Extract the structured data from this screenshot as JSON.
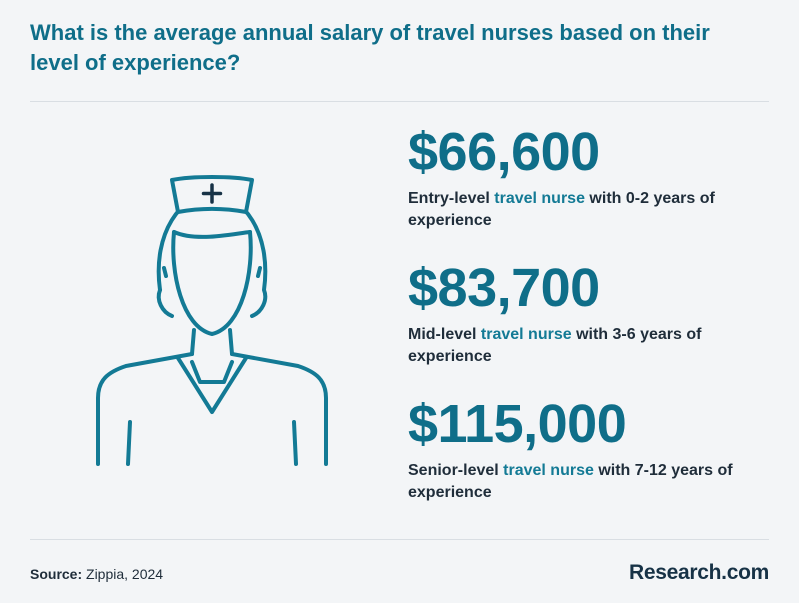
{
  "title": "What is the average annual salary of travel nurses based on their level of  experience?",
  "stats": [
    {
      "amount": "$66,600",
      "prefix": "Entry-level ",
      "highlight": "travel nurse",
      "suffix": " with 0-2 years of experience"
    },
    {
      "amount": "$83,700",
      "prefix": "Mid-level ",
      "highlight": "travel nurse",
      "suffix": " with 3-6 years of experience"
    },
    {
      "amount": "$115,000",
      "prefix": "Senior-level ",
      "highlight": "travel nurse",
      "suffix": " with 7-12 years of experience"
    }
  ],
  "footer": {
    "source_label": "Source:",
    "source_text": " Zippia, 2024",
    "brand": "Research.com"
  },
  "icon": "nurse-icon",
  "colors": {
    "accent": "#0f6e89",
    "background": "#f3f5f7",
    "text": "#1f2d3a"
  }
}
